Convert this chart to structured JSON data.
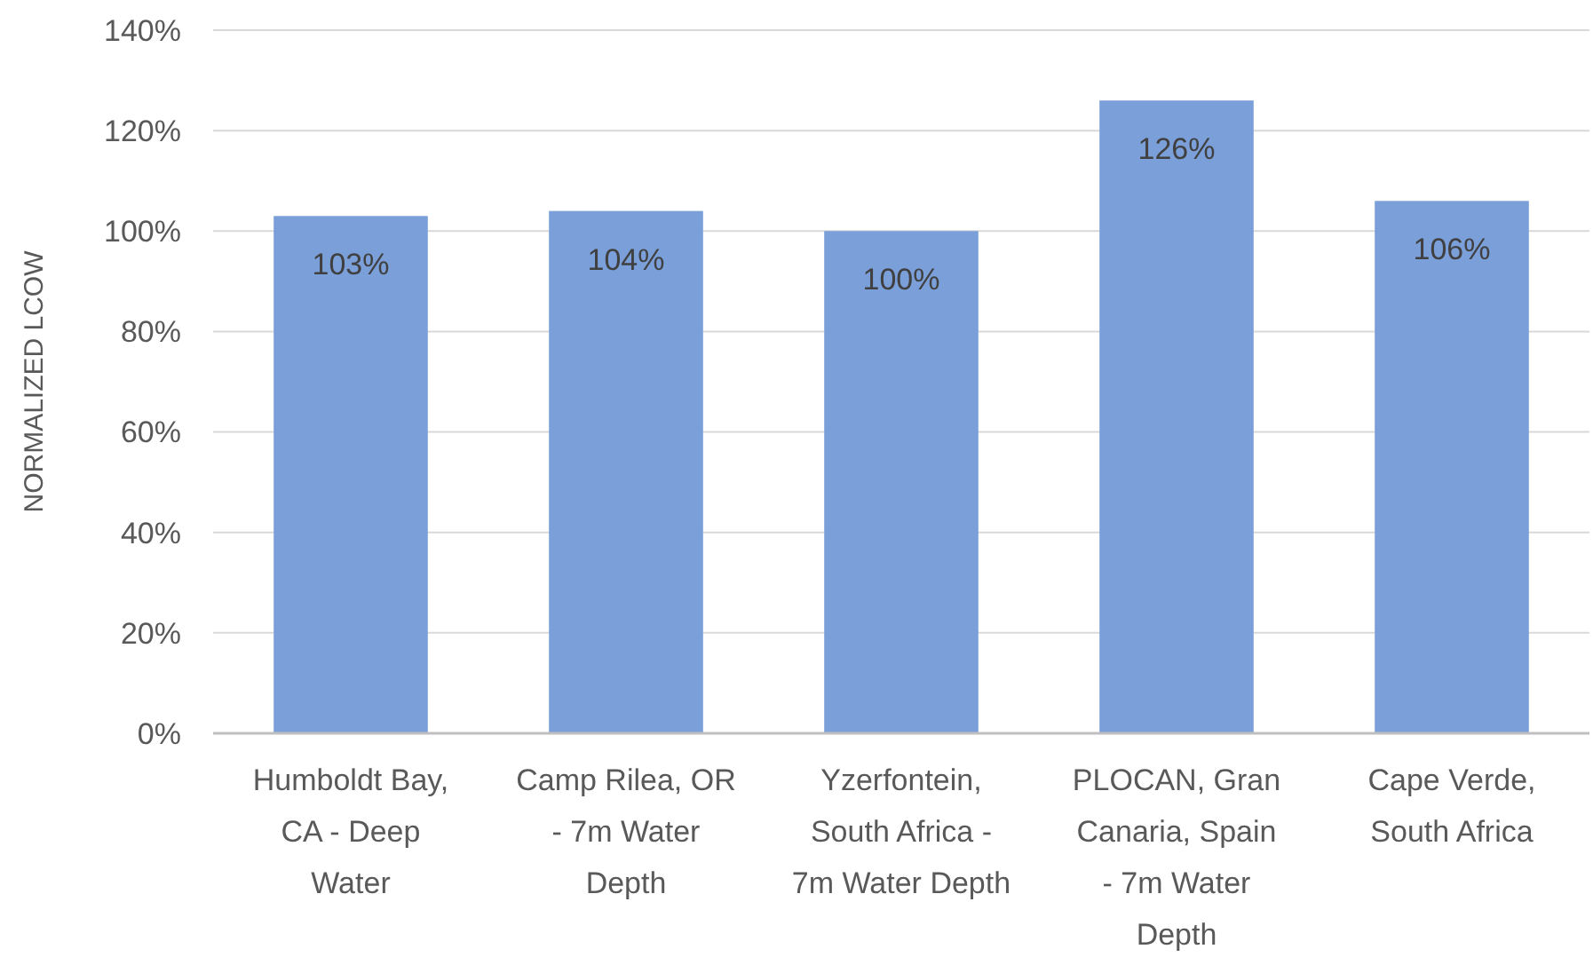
{
  "chart_data": {
    "type": "bar",
    "ylabel": "NORMALIZED LCOW",
    "categories": [
      "Humboldt Bay, CA - Deep Water",
      "Camp Rilea, OR - 7m Water Depth",
      "Yzerfontein, South Africa - 7m Water Depth",
      "PLOCAN, Gran Canaria, Spain - 7m Water Depth",
      "Cape Verde, South Africa"
    ],
    "values": [
      103,
      104,
      100,
      126,
      106
    ],
    "value_labels": [
      "103%",
      "104%",
      "100%",
      "126%",
      "106%"
    ],
    "color": "#7a9fd9",
    "ylim": [
      0,
      140
    ],
    "yticks": [
      {
        "value": 0,
        "label": "0%"
      },
      {
        "value": 20,
        "label": "20%"
      },
      {
        "value": 40,
        "label": "40%"
      },
      {
        "value": 60,
        "label": "60%"
      },
      {
        "value": 80,
        "label": "80%"
      },
      {
        "value": 100,
        "label": "100%"
      },
      {
        "value": 120,
        "label": "120%"
      },
      {
        "value": 140,
        "label": "140%"
      }
    ],
    "grid": "y"
  }
}
